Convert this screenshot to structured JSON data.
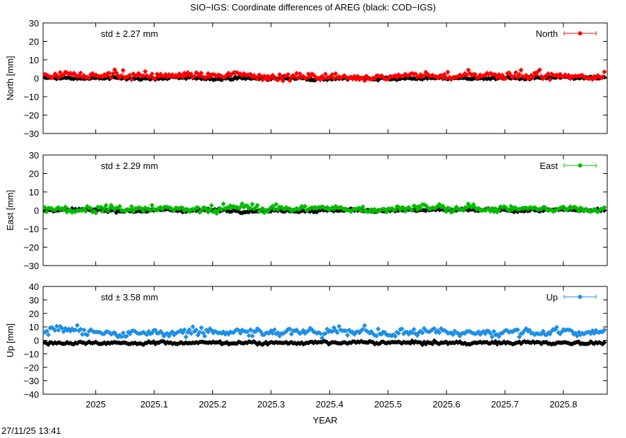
{
  "page": {
    "title": "SIO−IGS: Coordinate differences of AREG (black: COD−IGS)",
    "timestamp": "27/11/25 13:41"
  },
  "chart_data": [
    {
      "type": "scatter",
      "ylabel": "North [mm]",
      "ylim": [
        -30,
        30
      ],
      "yticks": [
        -30,
        -20,
        -10,
        0,
        10,
        20,
        30
      ],
      "xlim": [
        2024.91,
        2025.875
      ],
      "std_label": "std ± 2.27 mm",
      "color": "#ff0000",
      "grid": false,
      "legend_placement": "top-right",
      "series": [
        {
          "name": "North",
          "color": "#ff0000",
          "mean": 1.5,
          "amp": 2.27
        },
        {
          "color": "#000000",
          "mean": 0.0,
          "amp": 0.9
        }
      ]
    },
    {
      "type": "scatter",
      "ylabel": "East [mm]",
      "ylim": [
        -30,
        30
      ],
      "yticks": [
        -30,
        -20,
        -10,
        0,
        10,
        20,
        30
      ],
      "xlim": [
        2024.91,
        2025.875
      ],
      "std_label": "std ± 2.29 mm",
      "color": "#00bb00",
      "grid": false,
      "legend_placement": "top-right",
      "series": [
        {
          "name": "East",
          "color": "#00bb00",
          "mean": 1.0,
          "amp": 2.29
        },
        {
          "color": "#000000",
          "mean": 0.0,
          "amp": 0.9
        }
      ]
    },
    {
      "type": "scatter",
      "ylabel": "Up [mm]",
      "xlabel": "YEAR",
      "ylim": [
        -40,
        40
      ],
      "yticks": [
        -40,
        -30,
        -20,
        -10,
        0,
        10,
        20,
        30,
        40
      ],
      "xlim": [
        2024.91,
        2025.875
      ],
      "xticks": [
        2025,
        2025.1,
        2025.2,
        2025.3,
        2025.4,
        2025.5,
        2025.6,
        2025.7,
        2025.8
      ],
      "xticklabels": [
        "2025",
        "2025.1",
        "2025.2",
        "2025.3",
        "2025.4",
        "2025.5",
        "2025.6",
        "2025.7",
        "2025.8"
      ],
      "std_label": "std ± 3.58 mm",
      "color": "#1e8fe6",
      "grid": false,
      "legend_placement": "top-right",
      "series": [
        {
          "name": "Up",
          "color": "#1e8fe6",
          "mean": 6.0,
          "amp": 3.58
        },
        {
          "color": "#000000",
          "mean": -1.8,
          "amp": 1.3
        }
      ]
    }
  ]
}
